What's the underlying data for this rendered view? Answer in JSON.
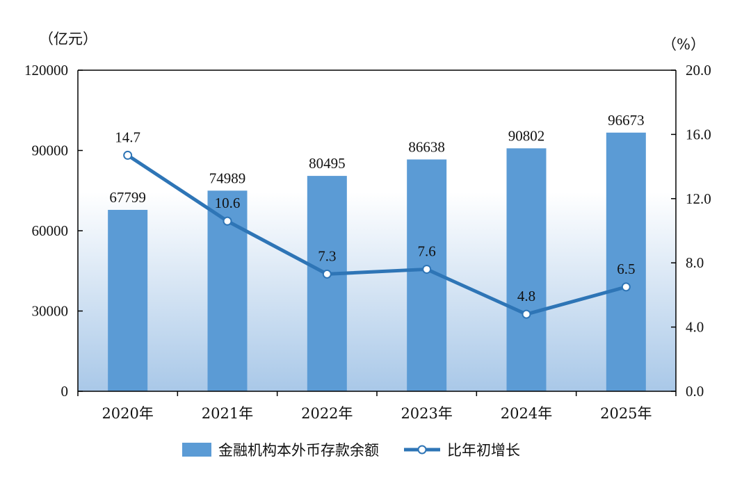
{
  "colors": {
    "bar": "#5B9BD5",
    "line": "#2E75B6",
    "marker_fill": "#ffffff",
    "bg_gradient_top": "#ffffff",
    "bg_gradient_bottom": "#A9C8E8",
    "axis": "#000000"
  },
  "chart_data": {
    "type": "bar",
    "categories": [
      "2020年",
      "2021年",
      "2022年",
      "2023年",
      "2024年",
      "2025年"
    ],
    "series": [
      {
        "name": "金融机构本外币存款余额",
        "type": "bar",
        "axis": "left",
        "values": [
          67799,
          74989,
          80495,
          86638,
          90802,
          96673
        ]
      },
      {
        "name": "比年初增长",
        "type": "line",
        "axis": "right",
        "values": [
          14.7,
          10.6,
          7.3,
          7.6,
          4.8,
          6.5
        ]
      }
    ],
    "y_left": {
      "unit": "（亿元）",
      "ylim": [
        0,
        120000
      ],
      "ticks": [
        "0",
        "30000",
        "60000",
        "90000",
        "120000"
      ]
    },
    "y_right": {
      "unit": "（%）",
      "ylim": [
        0,
        20
      ],
      "ticks": [
        "0.0",
        "4.0",
        "8.0",
        "12.0",
        "16.0",
        "20.0"
      ]
    },
    "bar_labels": [
      "67799",
      "74989",
      "80495",
      "86638",
      "90802",
      "96673"
    ],
    "line_labels": [
      "14.7",
      "10.6",
      "7.3",
      "7.6",
      "4.8",
      "6.5"
    ],
    "legend": {
      "position": "bottom"
    },
    "grid": false
  }
}
